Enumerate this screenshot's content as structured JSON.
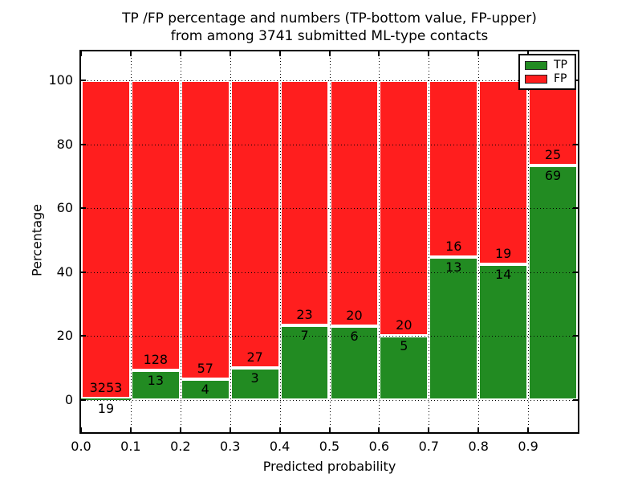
{
  "figure": {
    "title_line1": "TP /FP percentage and numbers (TP-bottom value, FP-upper)",
    "title_line2": "from among 3741 submitted ML-type contacts",
    "xlabel": "Predicted probability",
    "ylabel": "Percentage"
  },
  "legend": {
    "position": "upper right",
    "items": [
      {
        "label": "TP",
        "color": "#228b22"
      },
      {
        "label": "FP",
        "color": "#ff1e1e"
      }
    ]
  },
  "chart_data": {
    "type": "bar",
    "stacked": true,
    "title": "TP /FP percentage and numbers (TP-bottom value, FP-upper) from among 3741 submitted ML-type contacts",
    "xlabel": "Predicted probability",
    "ylabel": "Percentage",
    "total_contacts": 3741,
    "x_bin_edges": [
      0.0,
      0.1,
      0.2,
      0.3,
      0.4,
      0.5,
      0.6,
      0.7,
      0.8,
      0.9,
      1.0
    ],
    "x_tick_labels": [
      "0.0",
      "0.1",
      "0.2",
      "0.3",
      "0.4",
      "0.5",
      "0.6",
      "0.7",
      "0.8",
      "0.9"
    ],
    "y_tick_values": [
      0,
      20,
      40,
      60,
      80,
      100
    ],
    "ylim": [
      -10.5,
      110.5
    ],
    "grid": "dotted",
    "legend_position": "upper right",
    "bar_annotation_rule": "TP count below stack boundary, FP count above stack boundary",
    "series": [
      {
        "name": "TP",
        "color": "#228b22",
        "counts": [
          19,
          13,
          4,
          3,
          7,
          6,
          5,
          13,
          14,
          69
        ]
      },
      {
        "name": "FP",
        "color": "#ff1e1e",
        "counts": [
          3253,
          128,
          57,
          27,
          23,
          20,
          20,
          16,
          19,
          25
        ]
      }
    ],
    "tp_percent_of_bin": [
      0.58,
      9.22,
      6.56,
      10.0,
      23.33,
      23.08,
      20.0,
      44.83,
      42.42,
      73.4
    ],
    "values_plotted": "percent of bin total (TP bottom, FP stacked to 100)"
  }
}
